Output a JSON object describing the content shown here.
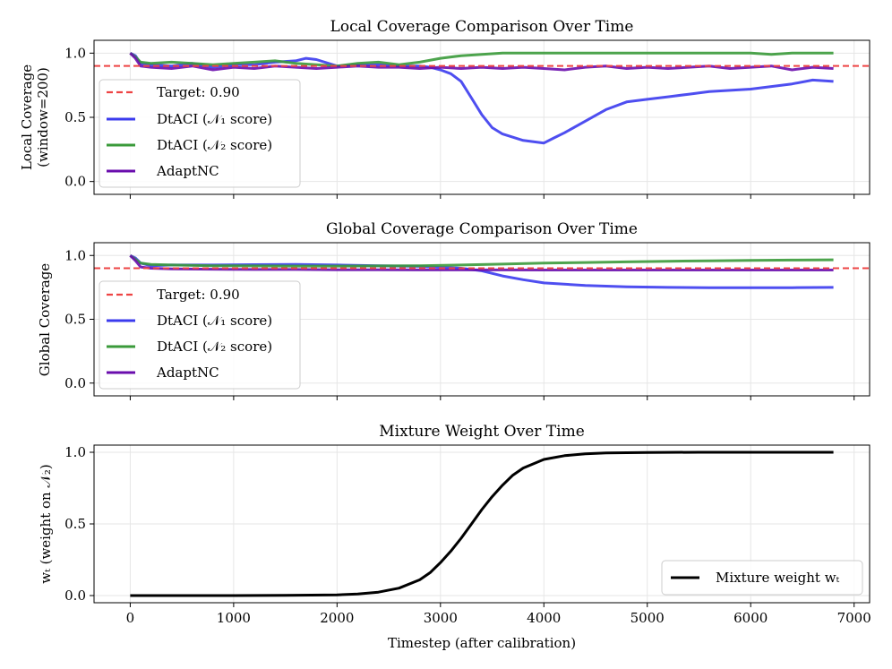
{
  "chart_data": [
    {
      "type": "line",
      "title": "Local Coverage Comparison Over Time",
      "ylabel": [
        "Local Coverage",
        "(window=200)"
      ],
      "xlabel": "",
      "xlim": [
        -350,
        7150
      ],
      "ylim": [
        -0.1,
        1.1
      ],
      "yticks": [
        "0.0",
        "0.5",
        "1.0"
      ],
      "grid": true,
      "target": 0.9,
      "legend_position": "lower-left",
      "legend": [
        "Target: 0.90",
        "DtACI (𝒩₁ score)",
        "DtACI (𝒩₂ score)",
        "AdaptNC"
      ],
      "series": [
        {
          "name": "DtACI (𝒩₁ score)",
          "color": "#3b3bee",
          "x": [
            0,
            50,
            100,
            200,
            400,
            600,
            800,
            1000,
            1200,
            1400,
            1600,
            1700,
            1800,
            2000,
            2200,
            2400,
            2600,
            2800,
            2900,
            3000,
            3100,
            3200,
            3300,
            3400,
            3500,
            3600,
            3800,
            4000,
            4100,
            4200,
            4400,
            4600,
            4800,
            5000,
            5200,
            5400,
            5600,
            5800,
            6000,
            6200,
            6400,
            6600,
            6800
          ],
          "y": [
            1.0,
            0.98,
            0.92,
            0.91,
            0.9,
            0.92,
            0.89,
            0.91,
            0.91,
            0.93,
            0.94,
            0.96,
            0.95,
            0.9,
            0.91,
            0.91,
            0.9,
            0.9,
            0.89,
            0.87,
            0.84,
            0.78,
            0.65,
            0.52,
            0.42,
            0.37,
            0.32,
            0.3,
            0.34,
            0.38,
            0.47,
            0.56,
            0.62,
            0.64,
            0.66,
            0.68,
            0.7,
            0.71,
            0.72,
            0.74,
            0.76,
            0.79,
            0.78
          ]
        },
        {
          "name": "DtACI (𝒩₂ score)",
          "color": "#3a9a3a",
          "x": [
            0,
            50,
            100,
            200,
            400,
            600,
            800,
            1000,
            1200,
            1400,
            1600,
            1800,
            2000,
            2200,
            2400,
            2600,
            2800,
            3000,
            3200,
            3400,
            3600,
            4000,
            5000,
            6000,
            6200,
            6400,
            6600,
            6800
          ],
          "y": [
            1.0,
            0.97,
            0.93,
            0.92,
            0.93,
            0.92,
            0.91,
            0.92,
            0.93,
            0.94,
            0.92,
            0.91,
            0.9,
            0.92,
            0.93,
            0.91,
            0.93,
            0.96,
            0.98,
            0.99,
            1.0,
            1.0,
            1.0,
            1.0,
            0.99,
            1.0,
            1.0,
            1.0
          ]
        },
        {
          "name": "AdaptNC",
          "color": "#6a0dad",
          "x": [
            0,
            50,
            100,
            200,
            400,
            600,
            800,
            1000,
            1200,
            1400,
            1600,
            1800,
            2000,
            2200,
            2400,
            2600,
            2800,
            3000,
            3200,
            3400,
            3600,
            3800,
            4000,
            4200,
            4400,
            4600,
            4800,
            5000,
            5200,
            5400,
            5600,
            5800,
            6000,
            6200,
            6400,
            6600,
            6800
          ],
          "y": [
            1.0,
            0.96,
            0.9,
            0.89,
            0.88,
            0.9,
            0.87,
            0.89,
            0.88,
            0.9,
            0.89,
            0.88,
            0.89,
            0.9,
            0.89,
            0.89,
            0.88,
            0.89,
            0.88,
            0.89,
            0.88,
            0.89,
            0.88,
            0.87,
            0.89,
            0.9,
            0.88,
            0.89,
            0.88,
            0.89,
            0.9,
            0.88,
            0.89,
            0.9,
            0.87,
            0.89,
            0.88
          ]
        }
      ]
    },
    {
      "type": "line",
      "title": "Global Coverage Comparison Over Time",
      "ylabel": [
        "Global Coverage"
      ],
      "xlabel": "",
      "xlim": [
        -350,
        7150
      ],
      "ylim": [
        -0.1,
        1.1
      ],
      "yticks": [
        "0.0",
        "0.5",
        "1.0"
      ],
      "grid": true,
      "target": 0.9,
      "legend_position": "lower-left",
      "legend": [
        "Target: 0.90",
        "DtACI (𝒩₁ score)",
        "DtACI (𝒩₂ score)",
        "AdaptNC"
      ],
      "series": [
        {
          "name": "DtACI (𝒩₁ score)",
          "color": "#3b3bee",
          "x": [
            0,
            50,
            100,
            200,
            400,
            800,
            1200,
            1600,
            2000,
            2400,
            2800,
            3200,
            3400,
            3600,
            3800,
            4000,
            4400,
            4800,
            5200,
            5600,
            6000,
            6400,
            6800
          ],
          "y": [
            1.0,
            0.98,
            0.94,
            0.92,
            0.925,
            0.925,
            0.928,
            0.93,
            0.925,
            0.92,
            0.915,
            0.9,
            0.88,
            0.84,
            0.81,
            0.785,
            0.765,
            0.755,
            0.75,
            0.748,
            0.748,
            0.748,
            0.75
          ]
        },
        {
          "name": "DtACI (𝒩₂ score)",
          "color": "#3a9a3a",
          "x": [
            0,
            50,
            100,
            200,
            400,
            800,
            1200,
            1600,
            2000,
            2400,
            2800,
            3200,
            3600,
            4000,
            4400,
            4800,
            5200,
            5600,
            6000,
            6400,
            6800
          ],
          "y": [
            1.0,
            0.97,
            0.94,
            0.93,
            0.925,
            0.92,
            0.918,
            0.917,
            0.917,
            0.918,
            0.92,
            0.925,
            0.932,
            0.94,
            0.945,
            0.95,
            0.955,
            0.958,
            0.962,
            0.964,
            0.966
          ]
        },
        {
          "name": "AdaptNC",
          "color": "#6a0dad",
          "x": [
            0,
            50,
            100,
            200,
            400,
            800,
            1200,
            1600,
            2000,
            2400,
            2800,
            3200,
            3600,
            4000,
            4800,
            5600,
            6400,
            6800
          ],
          "y": [
            1.0,
            0.96,
            0.91,
            0.9,
            0.895,
            0.892,
            0.89,
            0.89,
            0.888,
            0.888,
            0.887,
            0.887,
            0.887,
            0.886,
            0.886,
            0.886,
            0.886,
            0.886
          ]
        }
      ]
    },
    {
      "type": "line",
      "title": "Mixture Weight Over Time",
      "ylabel": [
        "wₜ (weight on 𝒩₂)"
      ],
      "xlabel": "Timestep (after calibration)",
      "xlim": [
        -350,
        7150
      ],
      "ylim": [
        -0.05,
        1.05
      ],
      "yticks": [
        "0.0",
        "0.5",
        "1.0"
      ],
      "xticks": [
        "0",
        "1000",
        "2000",
        "3000",
        "4000",
        "5000",
        "6000",
        "7000"
      ],
      "grid": true,
      "legend_position": "lower-right",
      "legend": [
        "Mixture weight wₜ"
      ],
      "series": [
        {
          "name": "Mixture weight wₜ",
          "color": "#000000",
          "x": [
            0,
            500,
            1000,
            1500,
            2000,
            2200,
            2400,
            2600,
            2800,
            2900,
            3000,
            3100,
            3200,
            3300,
            3400,
            3500,
            3600,
            3700,
            3800,
            4000,
            4200,
            4400,
            4600,
            5000,
            5500,
            6000,
            6500,
            6800
          ],
          "y": [
            0.0,
            0.0,
            0.0,
            0.001,
            0.005,
            0.011,
            0.024,
            0.052,
            0.11,
            0.16,
            0.23,
            0.31,
            0.4,
            0.5,
            0.6,
            0.69,
            0.77,
            0.84,
            0.89,
            0.95,
            0.976,
            0.989,
            0.995,
            0.999,
            1.0,
            1.0,
            1.0,
            1.0
          ]
        }
      ]
    }
  ]
}
